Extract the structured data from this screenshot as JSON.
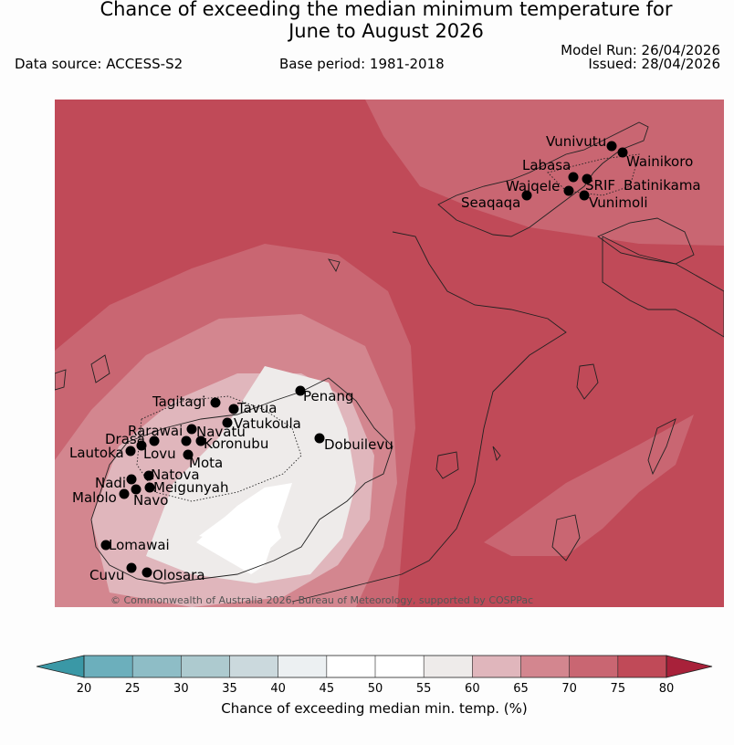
{
  "header": {
    "title_line1": "Chance of exceeding the median minimum temperature for",
    "title_line2": "June to August 2026",
    "data_source": "Data source: ACCESS-S2",
    "base_period": "Base period: 1981-2018",
    "model_run": "Model Run: 26/04/2026",
    "issued": "Issued: 28/04/2026"
  },
  "map": {
    "copyright": "© Commonwealth of Australia 2026, Bureau of Meteorology, supported by COSPPac",
    "places": [
      {
        "name": "Vunivutu"
      },
      {
        "name": "Wainikoro"
      },
      {
        "name": "Labasa"
      },
      {
        "name": "SRIF"
      },
      {
        "name": "Batinikama"
      },
      {
        "name": "Waiqele"
      },
      {
        "name": "Seaqaqa"
      },
      {
        "name": "Vunimoli"
      },
      {
        "name": "Tagitagi"
      },
      {
        "name": "Tavua"
      },
      {
        "name": "Penang"
      },
      {
        "name": "Vatukoula"
      },
      {
        "name": "Rarawai"
      },
      {
        "name": "Navatu"
      },
      {
        "name": "Dobuilevu"
      },
      {
        "name": "Drasa"
      },
      {
        "name": "Koronubu"
      },
      {
        "name": "Lautoka"
      },
      {
        "name": "Lovu"
      },
      {
        "name": "Mota"
      },
      {
        "name": "Natova"
      },
      {
        "name": "Nadi"
      },
      {
        "name": "Meigunyah"
      },
      {
        "name": "Malolo"
      },
      {
        "name": "Navo"
      },
      {
        "name": "Lomawai"
      },
      {
        "name": "Cuvu"
      },
      {
        "name": "Olosara"
      }
    ]
  },
  "legend": {
    "label": "Chance of exceeding median min. temp. (%)",
    "ticks": [
      "20",
      "25",
      "30",
      "35",
      "40",
      "45",
      "50",
      "55",
      "60",
      "65",
      "70",
      "75",
      "80"
    ],
    "colors": {
      "below_20": "#3a98a6",
      "bins": [
        "#6cafbc",
        "#8ebdc6",
        "#adcacf",
        "#cbd9dd",
        "#ecf0f2",
        "#ffffff",
        "#ffffff",
        "#eeebea",
        "#e0b6bc",
        "#d3868f",
        "#c96672",
        "#c04a58"
      ],
      "above_80": "#a8213a"
    }
  }
}
